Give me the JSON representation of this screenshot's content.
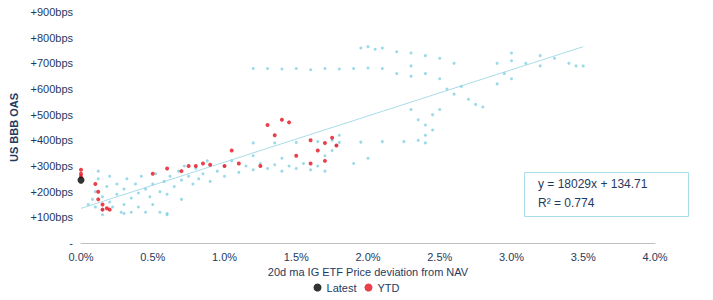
{
  "chart_data": {
    "type": "scatter",
    "x_label": "20d ma IG ETF Price deviation from NAV",
    "y_label": "US BBB OAS",
    "xlim": [
      0,
      4
    ],
    "xticks": [
      {
        "value": 0,
        "label": "0.0%"
      },
      {
        "value": 0.5,
        "label": "0.5%"
      },
      {
        "value": 1,
        "label": "1.0%"
      },
      {
        "value": 1.5,
        "label": "1.5%"
      },
      {
        "value": 2,
        "label": "2.0%"
      },
      {
        "value": 2.5,
        "label": "2.5%"
      },
      {
        "value": 3,
        "label": "3.0%"
      },
      {
        "value": 3.5,
        "label": "3.5%"
      },
      {
        "value": 4,
        "label": "4.0%"
      }
    ],
    "ylim": [
      0,
      900
    ],
    "yticks": [
      {
        "value": 0,
        "label": "-"
      },
      {
        "value": 100,
        "label": "+100bps"
      },
      {
        "value": 200,
        "label": "+200bps"
      },
      {
        "value": 300,
        "label": "+300bps"
      },
      {
        "value": 400,
        "label": "+400bps"
      },
      {
        "value": 500,
        "label": "+500bps"
      },
      {
        "value": 600,
        "label": "+600bps"
      },
      {
        "value": 700,
        "label": "+700bps"
      },
      {
        "value": 800,
        "label": "+800bps"
      },
      {
        "value": 900,
        "label": "+900bps"
      }
    ],
    "grid": false,
    "legend": "bottom",
    "annotations": [
      "y = 18029x + 134.71",
      "R² = 0.774"
    ],
    "series": [
      {
        "type": "scatter",
        "color": "#7fcfe3",
        "marker": "circle",
        "values": [
          [
            0.05,
            150
          ],
          [
            0.08,
            170
          ],
          [
            0.1,
            140
          ],
          [
            0.1,
            200
          ],
          [
            0.12,
            250
          ],
          [
            0.12,
            280
          ],
          [
            0.15,
            130
          ],
          [
            0.15,
            180
          ],
          [
            0.18,
            220
          ],
          [
            0.2,
            160
          ],
          [
            0.2,
            260
          ],
          [
            0.22,
            140
          ],
          [
            0.25,
            190
          ],
          [
            0.25,
            230
          ],
          [
            0.28,
            120
          ],
          [
            0.3,
            150
          ],
          [
            0.3,
            210
          ],
          [
            0.32,
            250
          ],
          [
            0.35,
            175
          ],
          [
            0.35,
            120
          ],
          [
            0.38,
            230
          ],
          [
            0.4,
            195
          ],
          [
            0.4,
            140
          ],
          [
            0.42,
            260
          ],
          [
            0.45,
            120
          ],
          [
            0.45,
            210
          ],
          [
            0.48,
            180
          ],
          [
            0.5,
            230
          ],
          [
            0.5,
            150
          ],
          [
            0.52,
            270
          ],
          [
            0.55,
            200
          ],
          [
            0.55,
            120
          ],
          [
            0.58,
            240
          ],
          [
            0.6,
            190
          ],
          [
            0.6,
            115
          ],
          [
            0.62,
            260
          ],
          [
            0.65,
            220
          ],
          [
            0.68,
            280
          ],
          [
            0.7,
            245
          ],
          [
            0.7,
            170
          ],
          [
            0.72,
            300
          ],
          [
            0.75,
            260
          ],
          [
            0.78,
            230
          ],
          [
            0.8,
            290
          ],
          [
            0.82,
            250
          ],
          [
            0.85,
            270
          ],
          [
            0.88,
            320
          ],
          [
            0.9,
            240
          ],
          [
            0.95,
            280
          ],
          [
            1.0,
            300
          ],
          [
            1.0,
            260
          ],
          [
            1.05,
            320
          ],
          [
            1.1,
            275
          ],
          [
            1.15,
            300
          ],
          [
            1.2,
            285
          ],
          [
            1.25,
            310
          ],
          [
            1.3,
            290
          ],
          [
            1.35,
            305
          ],
          [
            1.4,
            280
          ],
          [
            1.45,
            300
          ],
          [
            1.5,
            290
          ],
          [
            1.55,
            310
          ],
          [
            1.6,
            285
          ],
          [
            1.65,
            300
          ],
          [
            1.7,
            280
          ],
          [
            0.15,
            110
          ],
          [
            0.3,
            115
          ],
          [
            0.6,
            110
          ],
          [
            1.2,
            390
          ],
          [
            1.35,
            390
          ],
          [
            1.5,
            392
          ],
          [
            1.65,
            395
          ],
          [
            1.8,
            392
          ],
          [
            1.95,
            393
          ],
          [
            2.1,
            395
          ],
          [
            2.25,
            395
          ],
          [
            2.4,
            390
          ],
          [
            1.7,
            340
          ],
          [
            1.75,
            360
          ],
          [
            1.78,
            380
          ],
          [
            1.8,
            420
          ],
          [
            1.75,
            400
          ],
          [
            1.2,
            680
          ],
          [
            1.3,
            680
          ],
          [
            1.4,
            678
          ],
          [
            1.5,
            680
          ],
          [
            1.6,
            675
          ],
          [
            1.7,
            680
          ],
          [
            1.8,
            678
          ],
          [
            1.9,
            680
          ],
          [
            2.0,
            682
          ],
          [
            2.1,
            680
          ],
          [
            2.2,
            660
          ],
          [
            2.3,
            650
          ],
          [
            1.95,
            760
          ],
          [
            2.0,
            765
          ],
          [
            2.05,
            755
          ],
          [
            2.1,
            760
          ],
          [
            2.2,
            745
          ],
          [
            2.3,
            740
          ],
          [
            2.4,
            730
          ],
          [
            2.5,
            720
          ],
          [
            2.6,
            700
          ],
          [
            2.3,
            690
          ],
          [
            2.4,
            660
          ],
          [
            2.5,
            640
          ],
          [
            2.55,
            600
          ],
          [
            2.6,
            580
          ],
          [
            2.7,
            560
          ],
          [
            2.75,
            540
          ],
          [
            2.8,
            530
          ],
          [
            2.65,
            610
          ],
          [
            2.35,
            480
          ],
          [
            2.4,
            460
          ],
          [
            2.45,
            500
          ],
          [
            2.4,
            420
          ],
          [
            2.45,
            440
          ],
          [
            2.35,
            400
          ],
          [
            2.5,
            520
          ],
          [
            2.3,
            520
          ],
          [
            2.9,
            700
          ],
          [
            3.0,
            710
          ],
          [
            3.1,
            700
          ],
          [
            3.2,
            690
          ],
          [
            3.3,
            720
          ],
          [
            3.4,
            700
          ],
          [
            3.45,
            690
          ],
          [
            3.5,
            690
          ],
          [
            3.0,
            740
          ],
          [
            3.2,
            730
          ],
          [
            2.9,
            620
          ],
          [
            3.0,
            640
          ],
          [
            2.95,
            660
          ],
          [
            1.9,
            310
          ],
          [
            2.0,
            330
          ],
          [
            1.2,
            340
          ],
          [
            1.4,
            330
          ]
        ]
      },
      {
        "type": "line",
        "color": "#a9dcea",
        "line_style": "solid",
        "values": [
          [
            0,
            135
          ],
          [
            3.5,
            765
          ]
        ]
      },
      {
        "name": "Latest",
        "type": "scatter",
        "color": "#000000",
        "marker": "circle",
        "values": [
          [
            0,
            245
          ]
        ]
      },
      {
        "name": "YTD",
        "type": "scatter",
        "color": "#e3101e",
        "marker": "circle",
        "values": [
          [
            0,
            260
          ],
          [
            0,
            270
          ],
          [
            0,
            285
          ],
          [
            0.1,
            230
          ],
          [
            0.12,
            200
          ],
          [
            0.15,
            150
          ],
          [
            0.15,
            130
          ],
          [
            0.18,
            135
          ],
          [
            0.2,
            130
          ],
          [
            0.12,
            170
          ],
          [
            0.5,
            270
          ],
          [
            0.6,
            290
          ],
          [
            0.7,
            280
          ],
          [
            0.8,
            300
          ],
          [
            0.85,
            310
          ],
          [
            0.9,
            305
          ],
          [
            0.75,
            300
          ],
          [
            1.0,
            300
          ],
          [
            1.05,
            360
          ],
          [
            1.1,
            310
          ],
          [
            1.3,
            460
          ],
          [
            1.35,
            420
          ],
          [
            1.4,
            480
          ],
          [
            1.45,
            470
          ],
          [
            1.5,
            340
          ],
          [
            1.6,
            400
          ],
          [
            1.65,
            360
          ],
          [
            1.7,
            390
          ],
          [
            1.75,
            410
          ],
          [
            1.78,
            380
          ],
          [
            1.7,
            320
          ],
          [
            1.6,
            310
          ],
          [
            1.25,
            300
          ]
        ]
      }
    ]
  }
}
